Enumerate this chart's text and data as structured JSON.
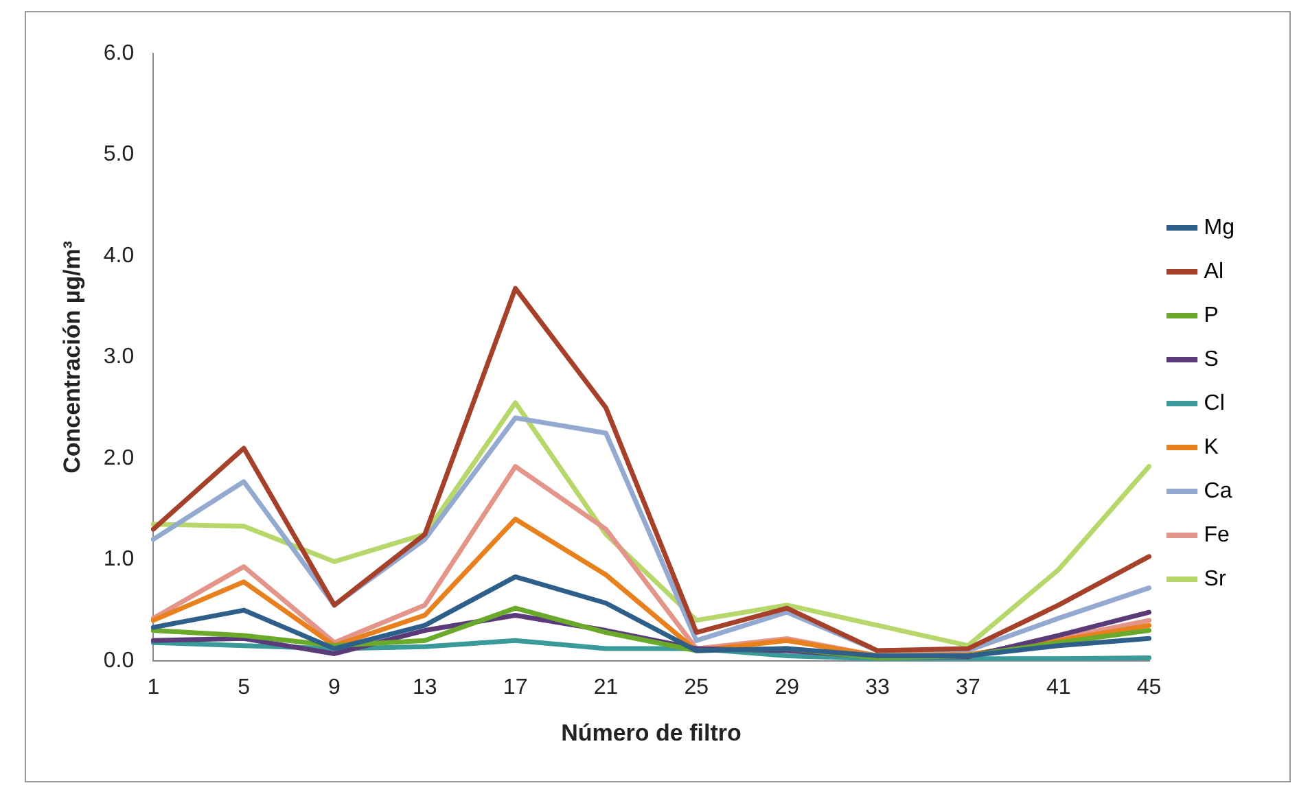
{
  "chart_data": {
    "type": "line",
    "xlabel": "Número de filtro",
    "ylabel": "Concentración µg/m³",
    "categories": [
      "1",
      "5",
      "9",
      "13",
      "17",
      "21",
      "25",
      "29",
      "33",
      "37",
      "41",
      "45"
    ],
    "ylim": [
      0,
      6
    ],
    "yticks": [
      {
        "value": 0,
        "label": "0.0"
      },
      {
        "value": 1,
        "label": "1.0"
      },
      {
        "value": 2,
        "label": "2.0"
      },
      {
        "value": 3,
        "label": "3.0"
      },
      {
        "value": 4,
        "label": "4.0"
      },
      {
        "value": 5,
        "label": "5.0"
      },
      {
        "value": 6,
        "label": "6.0"
      }
    ],
    "grid": false,
    "legend": "right",
    "marker": "none",
    "line_style": "solid",
    "series": [
      {
        "name": "Mg",
        "color": "#2e5f8a",
        "values": [
          0.33,
          0.5,
          0.12,
          0.35,
          0.83,
          0.57,
          0.1,
          0.12,
          0.05,
          0.05,
          0.15,
          0.22
        ]
      },
      {
        "name": "Al",
        "color": "#a5402a",
        "values": [
          1.3,
          2.1,
          0.55,
          1.25,
          3.68,
          2.5,
          0.28,
          0.52,
          0.1,
          0.12,
          0.55,
          1.03
        ]
      },
      {
        "name": "P",
        "color": "#6aaa2a",
        "values": [
          0.3,
          0.25,
          0.15,
          0.2,
          0.52,
          0.28,
          0.1,
          0.12,
          0.03,
          0.05,
          0.18,
          0.3
        ]
      },
      {
        "name": "S",
        "color": "#5b3a7a",
        "values": [
          0.2,
          0.22,
          0.07,
          0.3,
          0.45,
          0.3,
          0.12,
          0.1,
          0.04,
          0.04,
          0.25,
          0.48
        ]
      },
      {
        "name": "Cl",
        "color": "#3a9a9a",
        "values": [
          0.18,
          0.15,
          0.12,
          0.14,
          0.2,
          0.12,
          0.12,
          0.05,
          0.02,
          0.02,
          0.02,
          0.03
        ]
      },
      {
        "name": "K",
        "color": "#e8801e",
        "values": [
          0.4,
          0.78,
          0.15,
          0.45,
          1.4,
          0.85,
          0.1,
          0.2,
          0.05,
          0.06,
          0.2,
          0.35
        ]
      },
      {
        "name": "Ca",
        "color": "#93a9cf",
        "values": [
          1.2,
          1.77,
          0.55,
          1.2,
          2.4,
          2.25,
          0.2,
          0.48,
          0.1,
          0.1,
          0.42,
          0.72
        ]
      },
      {
        "name": "Fe",
        "color": "#e3958a",
        "values": [
          0.42,
          0.93,
          0.18,
          0.55,
          1.92,
          1.3,
          0.12,
          0.22,
          0.05,
          0.05,
          0.22,
          0.4
        ]
      },
      {
        "name": "Sr",
        "color": "#b6d76a",
        "values": [
          1.35,
          1.33,
          0.98,
          1.25,
          2.55,
          1.25,
          0.4,
          0.55,
          0.35,
          0.15,
          0.9,
          1.92
        ]
      }
    ]
  }
}
